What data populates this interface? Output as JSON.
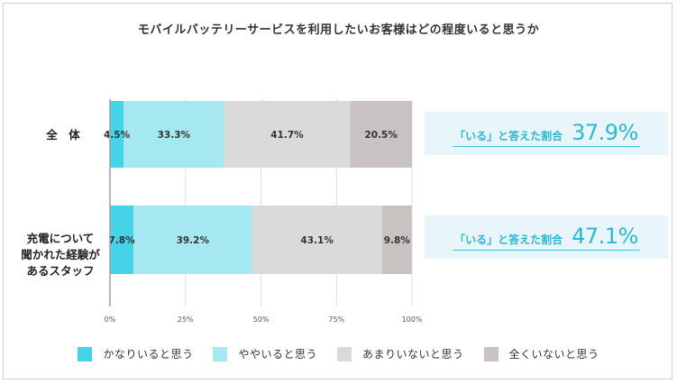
{
  "chart_data": {
    "type": "bar",
    "orientation": "horizontal",
    "stacked": true,
    "title": "モバイルバッテリーサービスを利用したいお客様はどの程度いると思うか",
    "categories": [
      "全　体",
      "充電について\n聞かれた経験が\nあるスタッフ"
    ],
    "series": [
      {
        "name": "かなりいると思う",
        "values": [
          4.5,
          7.8
        ],
        "color": "#45d3e8"
      },
      {
        "name": "ややいると思う",
        "values": [
          33.3,
          39.2
        ],
        "color": "#a6e8f2"
      },
      {
        "name": "あまりいないと思う",
        "values": [
          41.7,
          43.1
        ],
        "color": "#dadada"
      },
      {
        "name": "全くいないと思う",
        "values": [
          20.5,
          9.8
        ],
        "color": "#c9c2c2"
      }
    ],
    "x_ticks": [
      "0%",
      "25%",
      "50%",
      "75%",
      "100%"
    ],
    "xlim": [
      0,
      100
    ],
    "legend": "bottom",
    "grid": true,
    "callouts": [
      {
        "label": "「いる」と答えた割合",
        "value": "37.9%"
      },
      {
        "label": "「いる」と答えた割合",
        "value": "47.1%"
      }
    ]
  }
}
